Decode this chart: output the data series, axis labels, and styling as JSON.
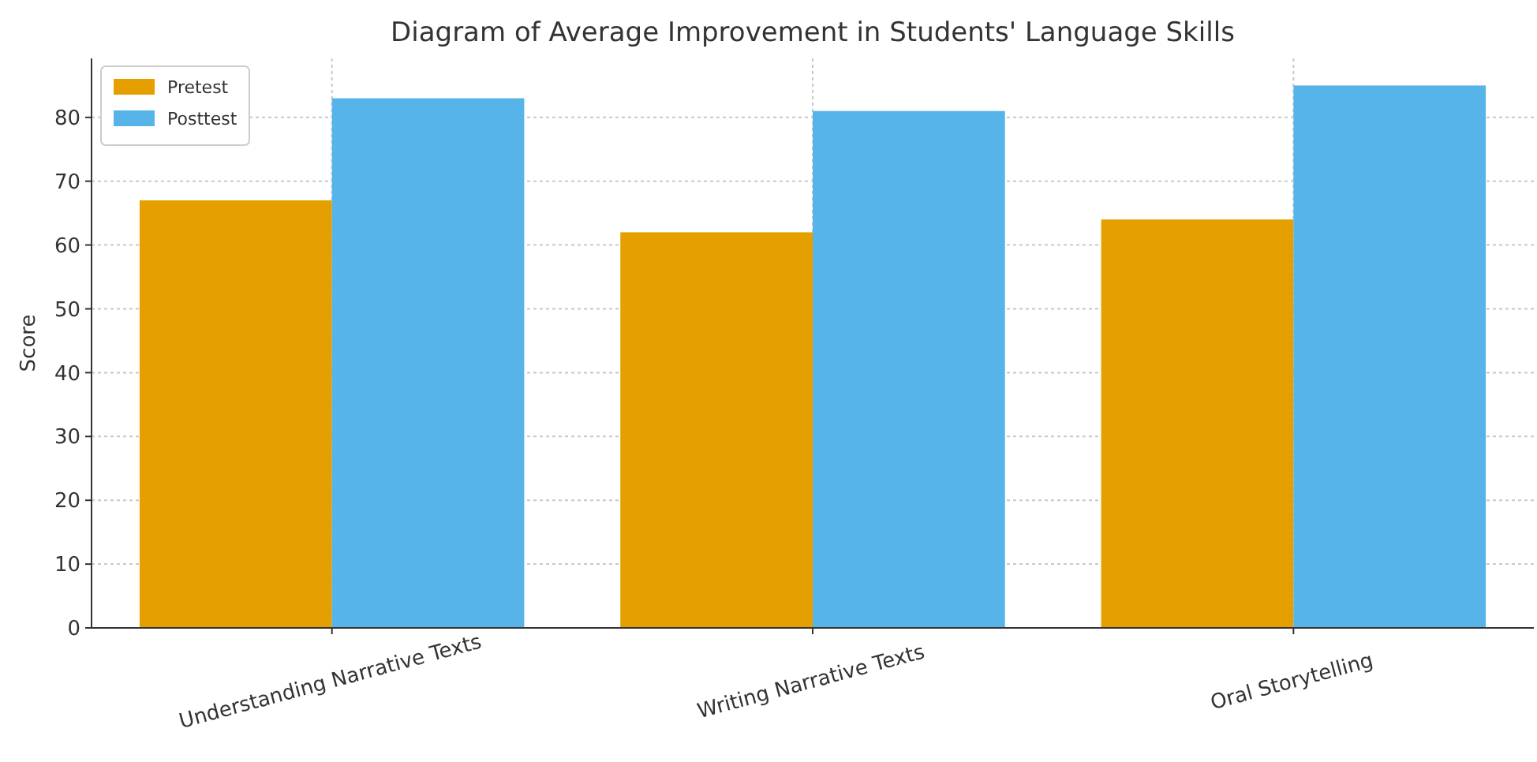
{
  "chart_data": {
    "type": "bar",
    "title": "Diagram of Average Improvement in Students' Language Skills",
    "ylabel": "Score",
    "categories": [
      "Understanding Narrative Texts",
      "Writing Narrative Texts",
      "Oral Storytelling"
    ],
    "series": [
      {
        "name": "Pretest",
        "color": "#e69f00",
        "values": [
          67,
          62,
          64
        ]
      },
      {
        "name": "Posttest",
        "color": "#56b4e9",
        "values": [
          83,
          81,
          85
        ]
      }
    ],
    "ylim": [
      0,
      89.25
    ],
    "yticks": [
      0,
      10,
      20,
      30,
      40,
      50,
      60,
      70,
      80
    ],
    "grid": true,
    "legend": "top left"
  }
}
